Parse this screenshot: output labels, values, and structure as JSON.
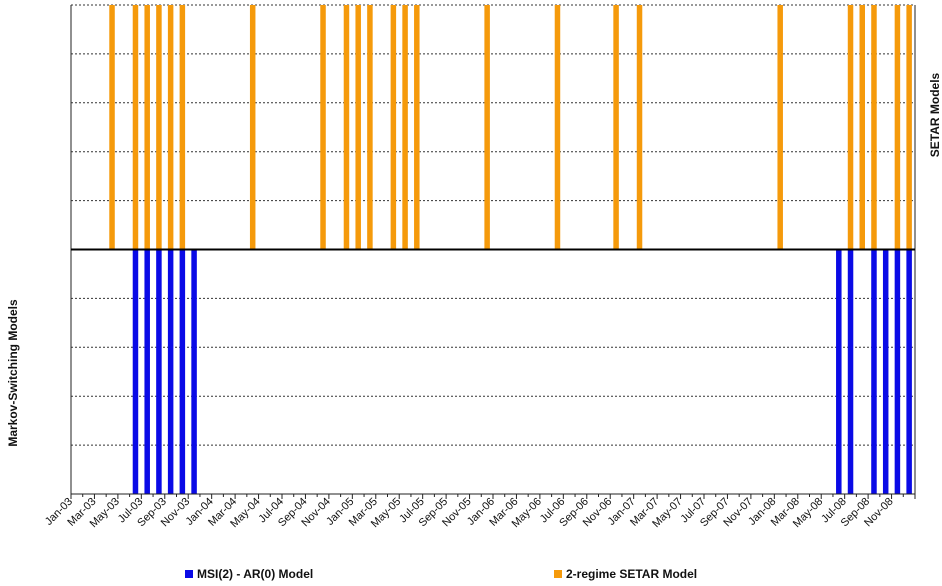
{
  "chart_data": {
    "type": "bar",
    "x_labels": [
      "Jan-03",
      "Mar-03",
      "May-03",
      "Jul-03",
      "Sep-03",
      "Nov-03",
      "Jan-04",
      "Mar-04",
      "May-04",
      "Jul-04",
      "Sep-04",
      "Nov-04",
      "Jan-05",
      "Mar-05",
      "May-05",
      "Jul-05",
      "Sep-05",
      "Nov-05",
      "Jan-06",
      "Mar-06",
      "May-06",
      "Jul-06",
      "Sep-06",
      "Nov-06",
      "Jan-07",
      "Mar-07",
      "May-07",
      "Jul-07",
      "Sep-07",
      "Nov-07",
      "Jan-08",
      "Mar-08",
      "May-08",
      "Jul-08",
      "Sep-08",
      "Nov-08"
    ],
    "ylabel_top": "SETAR Models",
    "ylabel_bottom": "Markov-Switching Models",
    "grid": true,
    "legend_position": "bottom",
    "series": [
      {
        "name": "MSI(2) - AR(0) Model",
        "color": "#0a0ae6",
        "direction": "down",
        "dates": [
          "Jun-03",
          "Jul-03",
          "Aug-03",
          "Sep-03",
          "Oct-03",
          "Nov-03",
          "Jun-08",
          "Jul-08",
          "Sep-08",
          "Oct-08",
          "Nov-08",
          "Dec-08"
        ]
      },
      {
        "name": "2-regime SETAR Model",
        "color": "#f59a0b",
        "direction": "up",
        "dates": [
          "Apr-03",
          "Jun-03",
          "Jul-03",
          "Aug-03",
          "Sep-03",
          "Oct-03",
          "Apr-04",
          "Oct-04",
          "Dec-04",
          "Jan-05",
          "Feb-05",
          "Apr-05",
          "May-05",
          "Jun-05",
          "Dec-05",
          "Jun-06",
          "Nov-06",
          "Jan-07",
          "Jan-08",
          "Jul-08",
          "Aug-08",
          "Sep-08",
          "Nov-08",
          "Dec-08"
        ]
      }
    ]
  }
}
